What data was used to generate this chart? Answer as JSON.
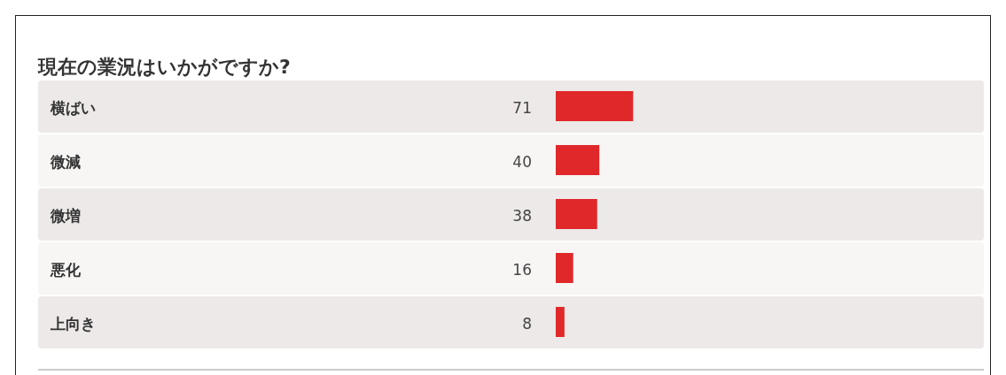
{
  "chart_data": {
    "type": "bar",
    "orientation": "horizontal",
    "title": "現在の業況はいかがですか?",
    "categories": [
      "横ばい",
      "微減",
      "微増",
      "悪化",
      "上向き"
    ],
    "values": [
      71,
      40,
      38,
      16,
      8
    ],
    "color": "#e0282a",
    "data_labels": true
  }
}
